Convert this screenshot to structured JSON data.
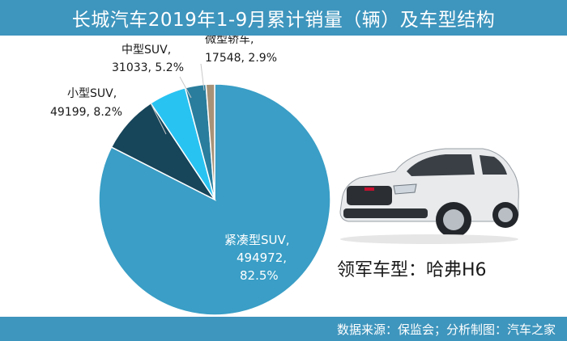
{
  "title": "长城汽车2019年1-9月累计销量（辆）及车型结构",
  "source": "数据来源：保监会；分析制图：汽车之家",
  "car_caption": "领军车型：哈弗H6",
  "colors": {
    "header_bg": "#3e95bd",
    "compact_suv": "#3a9ec6",
    "small_suv": "#17455a",
    "mid_suv": "#29c3f2",
    "mini_car": "#2a7d9c",
    "other": "#a89277"
  },
  "chart_data": {
    "type": "pie",
    "title": "长城汽车2019年1-9月累计销量（辆）及车型结构",
    "slices": [
      {
        "name": "紧凑型SUV",
        "value": 494972,
        "percent": 82.5,
        "color": "#3a9ec6"
      },
      {
        "name": "小型SUV",
        "value": 49199,
        "percent": 8.2,
        "color": "#17455a"
      },
      {
        "name": "中型SUV",
        "value": 31033,
        "percent": 5.2,
        "color": "#29c3f2"
      },
      {
        "name": "微型轿车",
        "value": 17548,
        "percent": 2.9,
        "color": "#2a7d9c"
      },
      {
        "name": "",
        "value": null,
        "percent": 1.2,
        "color": "#a89277"
      }
    ],
    "labels": {
      "compact": {
        "name": "紧凑型SUV,",
        "value": "494972,",
        "percent": "82.5%"
      },
      "small": {
        "name": "小型SUV,",
        "value_percent": "49199, 8.2%"
      },
      "mid": {
        "name": "中型SUV,",
        "value_percent": "31033, 5.2%"
      },
      "mini": {
        "name": "微型轿车,",
        "value_percent": "17548, 2.9%"
      }
    }
  }
}
